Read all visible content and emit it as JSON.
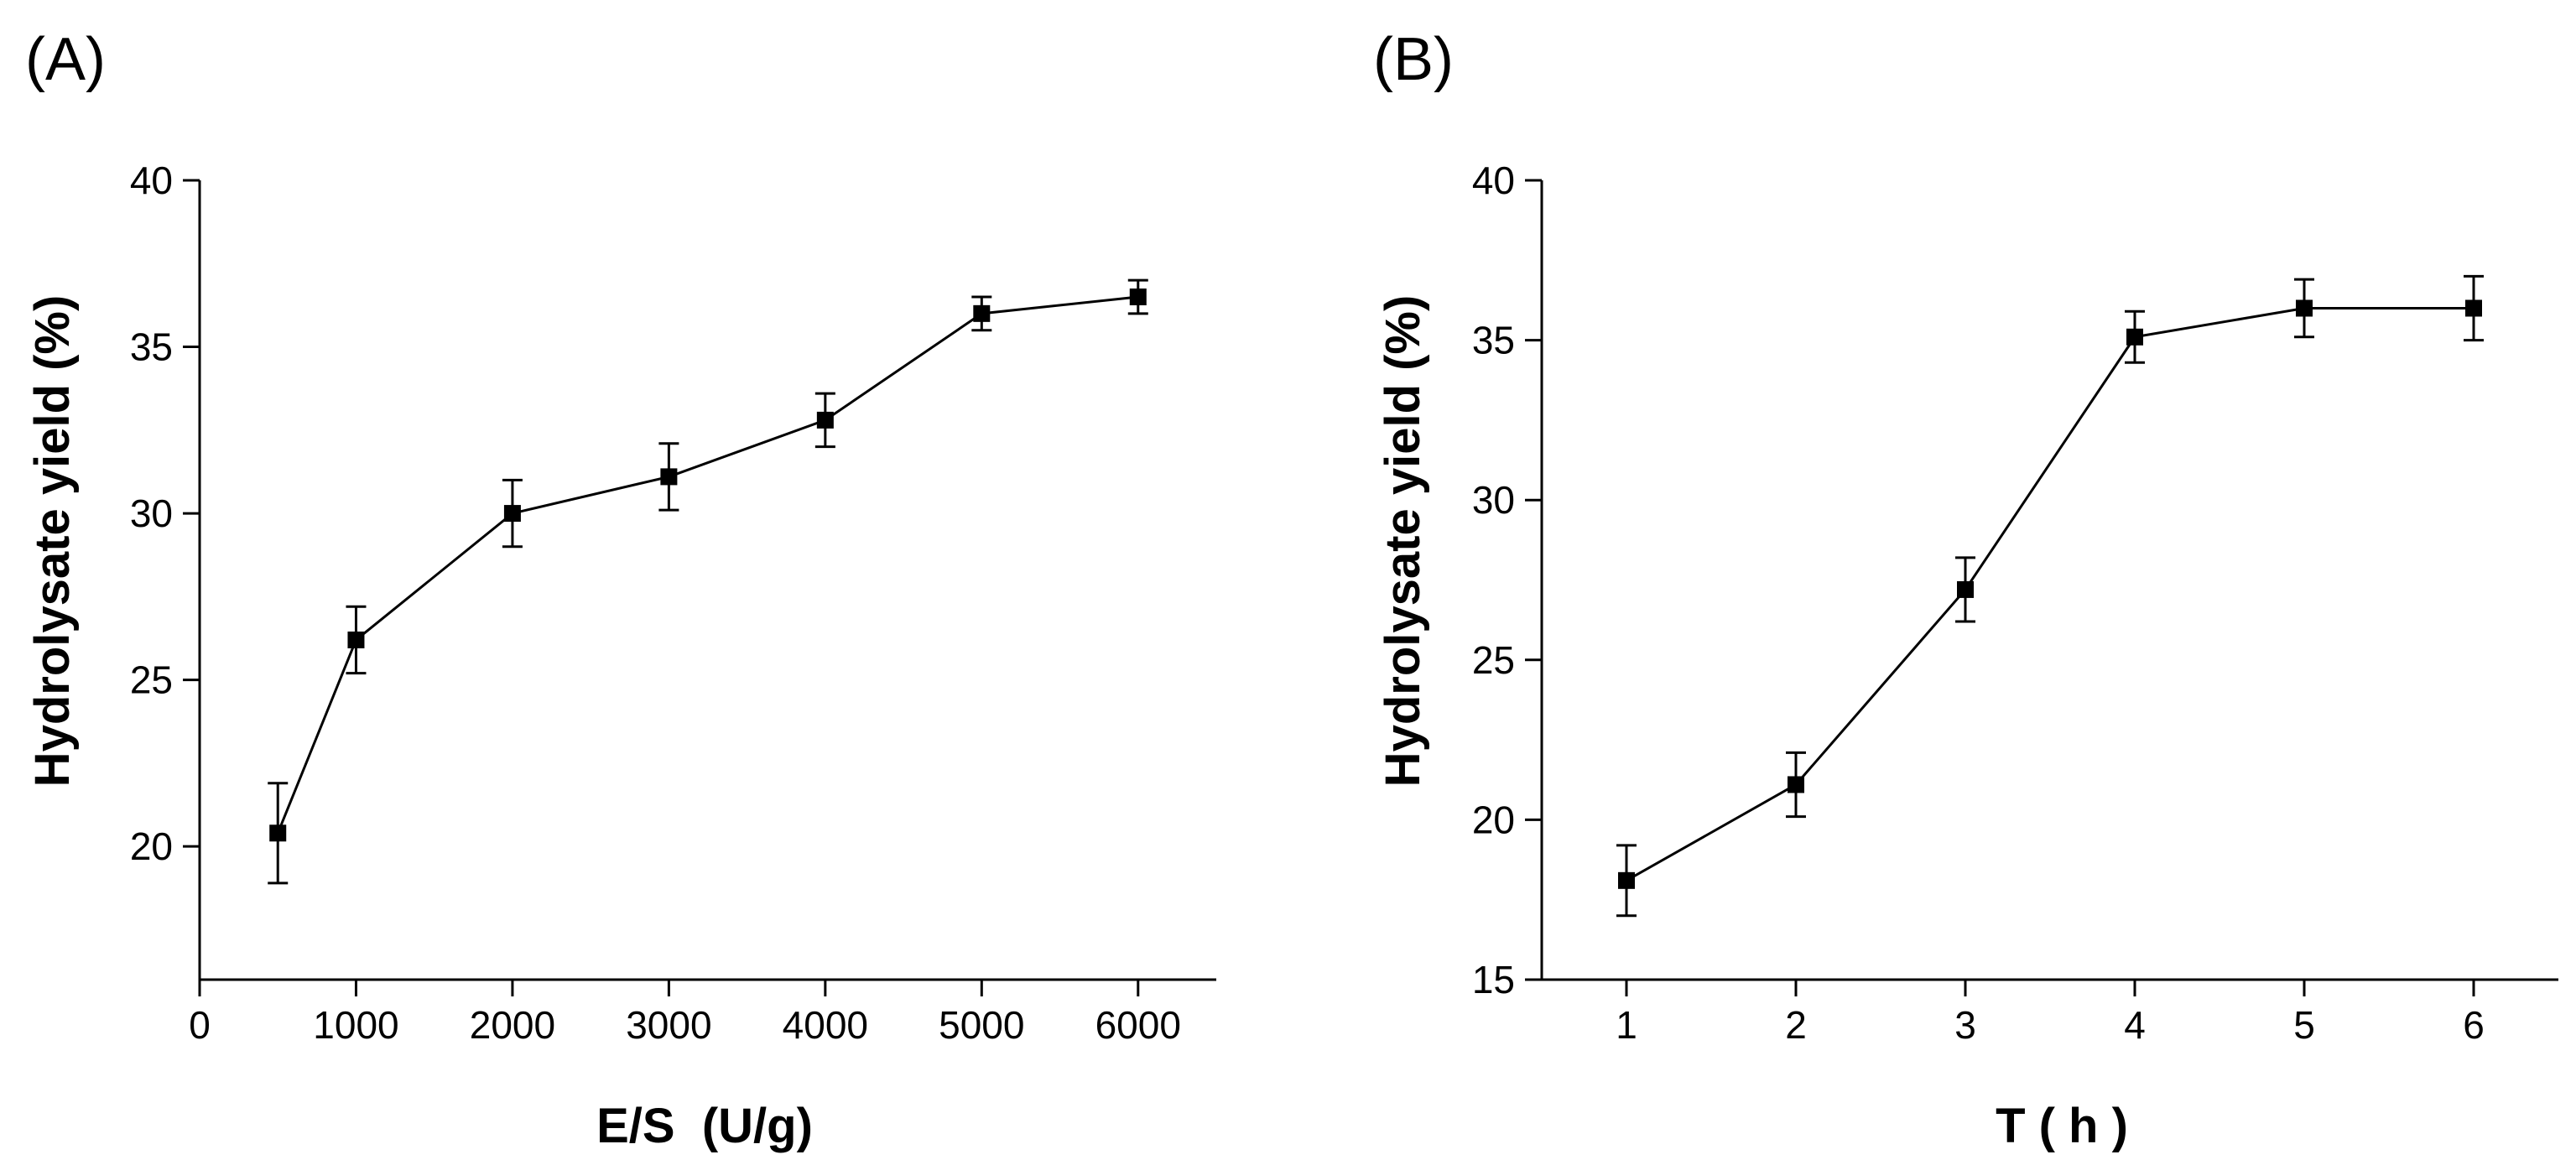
{
  "chart_data": [
    {
      "type": "line",
      "panel_label": "(A)",
      "title": "",
      "xlabel": "E/S  (U/g)",
      "ylabel": "Hydrolysate yield (%)",
      "xlim": [
        0,
        6500
      ],
      "ylim": [
        16,
        40
      ],
      "xticks": [
        0,
        1000,
        2000,
        3000,
        4000,
        5000,
        6000
      ],
      "yticks": [
        20,
        25,
        30,
        35,
        40
      ],
      "x": [
        500,
        1000,
        2000,
        3000,
        4000,
        5000,
        6000
      ],
      "series": [
        {
          "name": "Hydrolysate yield",
          "values": [
            20.4,
            26.2,
            30.0,
            31.1,
            32.8,
            36.0,
            36.5
          ],
          "errors": [
            1.5,
            1.0,
            1.0,
            1.0,
            0.8,
            0.5,
            0.5
          ]
        }
      ],
      "marker": "square",
      "color": "#000000"
    },
    {
      "type": "line",
      "panel_label": "(B)",
      "title": "",
      "xlabel": "T ( h )",
      "ylabel": "Hydrolysate yield (%)",
      "xlim": [
        0.5,
        6.5
      ],
      "ylim": [
        15,
        40
      ],
      "xticks": [
        1,
        2,
        3,
        4,
        5,
        6
      ],
      "yticks": [
        15,
        20,
        25,
        30,
        35,
        40
      ],
      "x": [
        1,
        2,
        3,
        4,
        5,
        6
      ],
      "series": [
        {
          "name": "Hydrolysate yield",
          "values": [
            18.1,
            21.1,
            27.2,
            35.1,
            36.0,
            36.0
          ],
          "errors": [
            1.1,
            1.0,
            1.0,
            0.8,
            0.9,
            1.0
          ]
        }
      ],
      "marker": "square",
      "color": "#000000"
    }
  ]
}
